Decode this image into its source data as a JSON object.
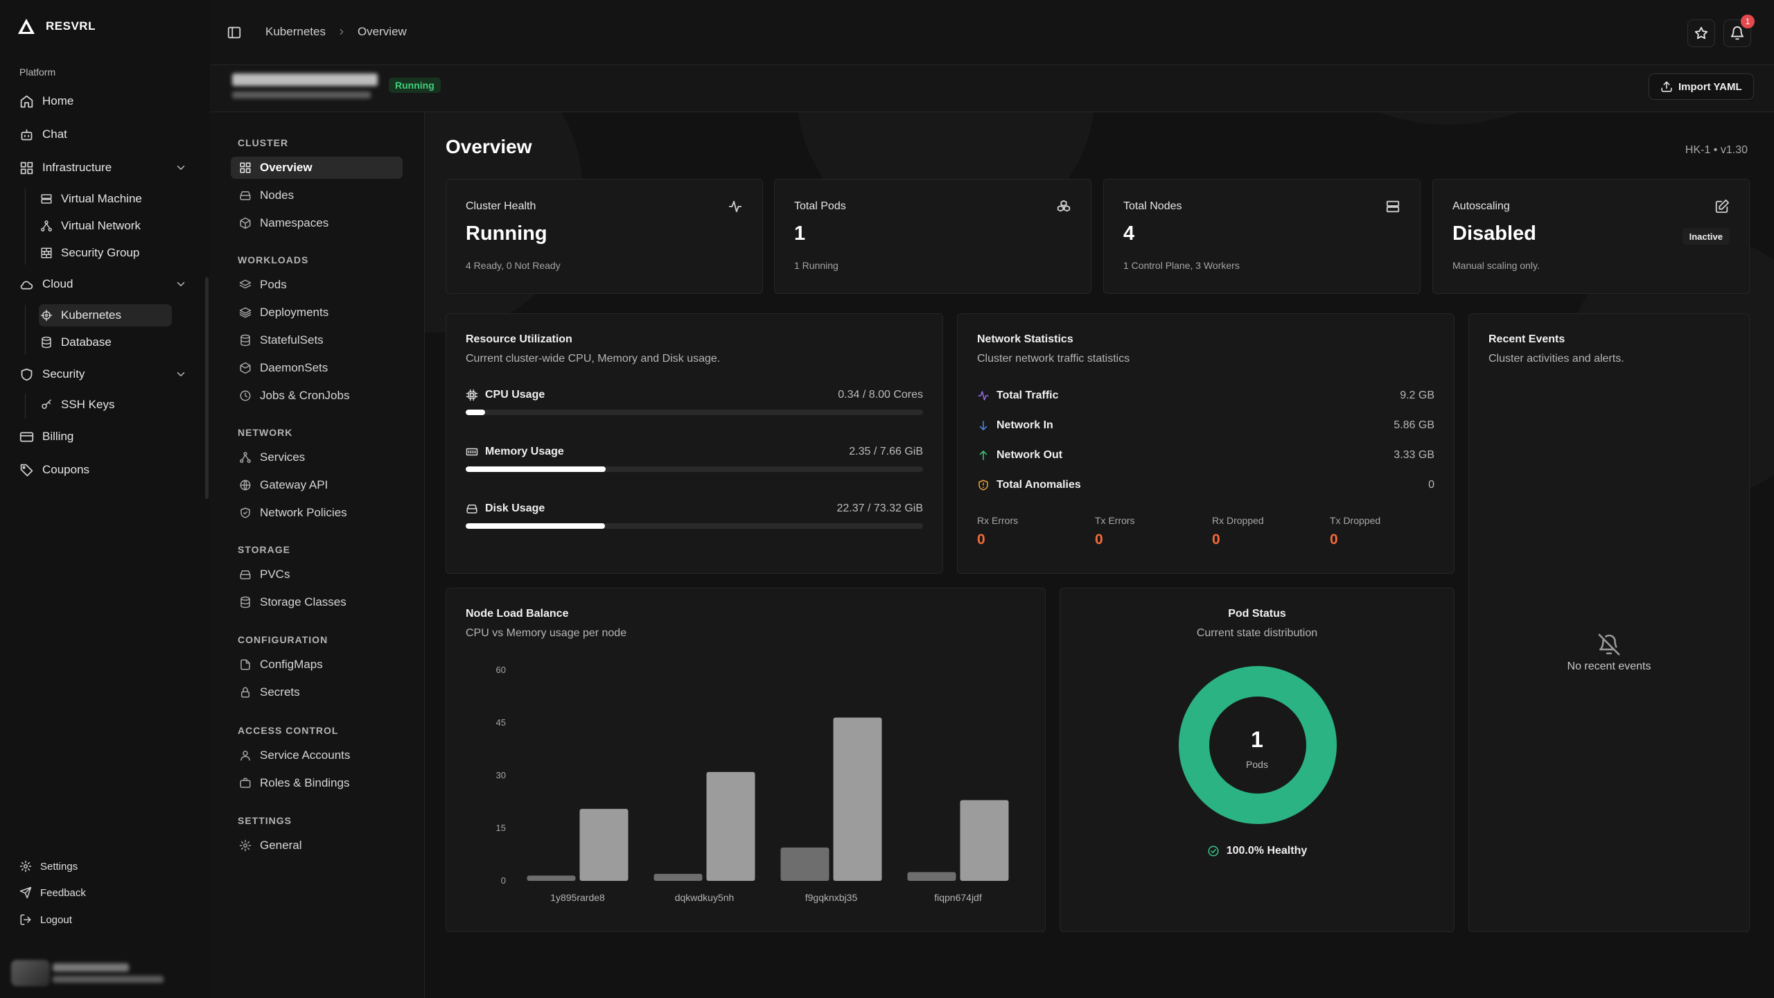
{
  "brand": {
    "name": "RESVRL"
  },
  "sidebar": {
    "section": "Platform",
    "items": [
      {
        "label": "Home"
      },
      {
        "label": "Chat"
      },
      {
        "label": "Infrastructure"
      },
      {
        "label": "Cloud"
      },
      {
        "label": "Security"
      },
      {
        "label": "Billing"
      },
      {
        "label": "Coupons"
      }
    ],
    "infrastructure_sub": [
      {
        "label": "Virtual Machine"
      },
      {
        "label": "Virtual Network"
      },
      {
        "label": "Security Group"
      }
    ],
    "cloud_sub": [
      {
        "label": "Kubernetes"
      },
      {
        "label": "Database"
      }
    ],
    "security_sub": [
      {
        "label": "SSH Keys"
      }
    ],
    "footer": [
      {
        "label": "Settings"
      },
      {
        "label": "Feedback"
      },
      {
        "label": "Logout"
      }
    ]
  },
  "header": {
    "breadcrumb": [
      "Kubernetes",
      "Overview"
    ],
    "notification_count": "1",
    "cluster_status": "Running",
    "import_label": "Import YAML"
  },
  "subnav": {
    "groups": [
      {
        "title": "CLUSTER",
        "items": [
          "Overview",
          "Nodes",
          "Namespaces"
        ]
      },
      {
        "title": "WORKLOADS",
        "items": [
          "Pods",
          "Deployments",
          "StatefulSets",
          "DaemonSets",
          "Jobs & CronJobs"
        ]
      },
      {
        "title": "NETWORK",
        "items": [
          "Services",
          "Gateway API",
          "Network Policies"
        ]
      },
      {
        "title": "STORAGE",
        "items": [
          "PVCs",
          "Storage Classes"
        ]
      },
      {
        "title": "CONFIGURATION",
        "items": [
          "ConfigMaps",
          "Secrets"
        ]
      },
      {
        "title": "ACCESS CONTROL",
        "items": [
          "Service Accounts",
          "Roles & Bindings"
        ]
      },
      {
        "title": "SETTINGS",
        "items": [
          "General"
        ]
      }
    ]
  },
  "main": {
    "title": "Overview",
    "meta": "HK-1 • v1.30",
    "stats": [
      {
        "label": "Cluster Health",
        "value": "Running",
        "sub": "4 Ready, 0 Not Ready",
        "icon": "activity-icon"
      },
      {
        "label": "Total Pods",
        "value": "1",
        "sub": "1 Running",
        "icon": "boxes-icon"
      },
      {
        "label": "Total Nodes",
        "value": "4",
        "sub": "1 Control Plane, 3 Workers",
        "icon": "server-icon"
      },
      {
        "label": "Autoscaling",
        "value": "Disabled",
        "sub": "Manual scaling only.",
        "icon": "edit-icon",
        "tag": "Inactive"
      }
    ],
    "resource": {
      "title": "Resource Utilization",
      "subtitle": "Current cluster-wide CPU, Memory and Disk usage.",
      "rows": [
        {
          "label": "CPU Usage",
          "value": "0.34 / 8.00 Cores",
          "fraction": 0.0425
        },
        {
          "label": "Memory Usage",
          "value": "2.35 / 7.66 GiB",
          "fraction": 0.3068
        },
        {
          "label": "Disk Usage",
          "value": "22.37 / 73.32 GiB",
          "fraction": 0.3051
        }
      ]
    },
    "network": {
      "title": "Network Statistics",
      "subtitle": "Cluster network traffic statistics",
      "rows": [
        {
          "label": "Total Traffic",
          "value": "9.2 GB",
          "color": "#9b6cf0"
        },
        {
          "label": "Network In",
          "value": "5.86 GB",
          "color": "#4a8df0"
        },
        {
          "label": "Network Out",
          "value": "3.33 GB",
          "color": "#3fcf7b"
        },
        {
          "label": "Total Anomalies",
          "value": "0",
          "color": "#e9a23b"
        }
      ],
      "errors": [
        {
          "label": "Rx Errors",
          "value": "0"
        },
        {
          "label": "Tx Errors",
          "value": "0"
        },
        {
          "label": "Rx Dropped",
          "value": "0"
        },
        {
          "label": "Tx Dropped",
          "value": "0"
        }
      ]
    },
    "events": {
      "title": "Recent Events",
      "subtitle": "Cluster activities and alerts.",
      "empty": "No recent events"
    },
    "pod_status": {
      "title": "Pod Status",
      "subtitle": "Current state distribution",
      "count": "1",
      "count_label": "Pods",
      "healthy": "100.0% Healthy",
      "color": "#2bb383"
    },
    "node_load": {
      "title": "Node Load Balance",
      "subtitle": "CPU vs Memory usage per node"
    }
  },
  "chart_data": {
    "type": "bar",
    "title": "Node Load Balance",
    "categories": [
      "1y895rarde8",
      "dqkwdkuy5nh",
      "f9gqknxbj35",
      "fiqpn674jdf"
    ],
    "series": [
      {
        "values": [
          1.5,
          2,
          9.5,
          2.5
        ],
        "color": "#6e6e6e"
      },
      {
        "values": [
          20.5,
          31,
          46.5,
          23
        ],
        "color": "#9c9c9c"
      }
    ],
    "yticks": [
      "0",
      "15",
      "30",
      "45",
      "60"
    ],
    "ylim": [
      0,
      60
    ],
    "grid": false
  }
}
